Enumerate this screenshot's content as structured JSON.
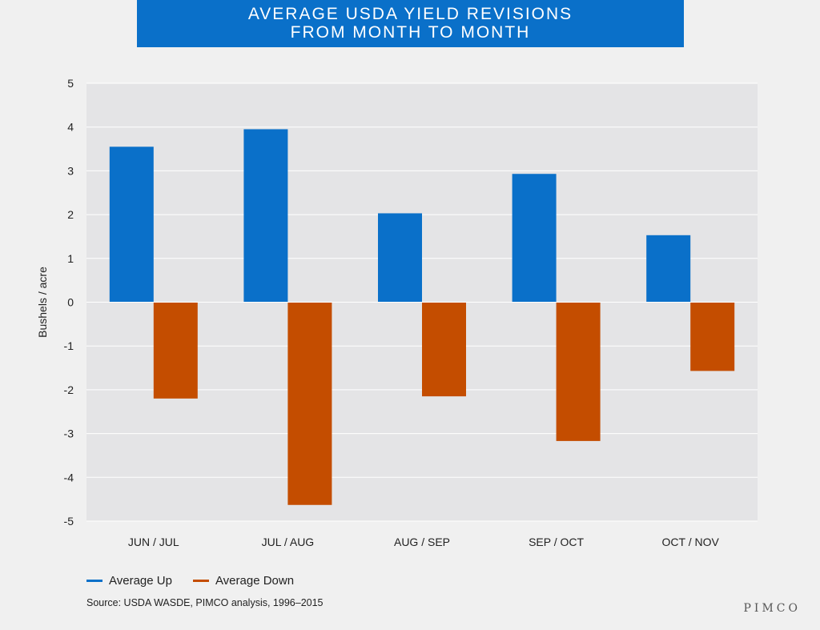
{
  "header": {
    "title_line1": "AVERAGE USDA YIELD REVISIONS",
    "title_line2": "FROM MONTH TO MONTH"
  },
  "chart_data": {
    "type": "bar",
    "categories": [
      "JUN / JUL",
      "JUL / AUG",
      "AUG / SEP",
      "SEP / OCT",
      "OCT / NOV"
    ],
    "series": [
      {
        "name": "Average Up",
        "color": "#0a70c9",
        "values": [
          3.55,
          3.95,
          2.03,
          2.93,
          1.53
        ]
      },
      {
        "name": "Average Down",
        "color": "#c44d00",
        "values": [
          -2.2,
          -4.63,
          -2.15,
          -3.17,
          -1.57
        ]
      }
    ],
    "ylabel": "Bushels / acre",
    "ylim": [
      -5,
      5
    ],
    "yticks": [
      "5",
      "4",
      "3",
      "2",
      "1",
      "0",
      "-1",
      "-2",
      "-3",
      "-4",
      "-5"
    ],
    "grid": true,
    "legend_position": "bottom-left"
  },
  "footer": {
    "source": "Source: USDA WASDE, PIMCO analysis, 1996–2015",
    "brand": "PIMCO"
  }
}
